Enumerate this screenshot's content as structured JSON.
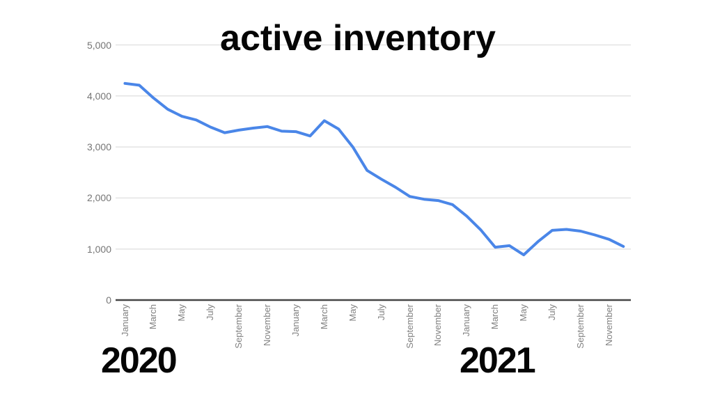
{
  "colors": {
    "background": "#ffffff",
    "line": "#4a86e8",
    "gridline": "#e3e3e3",
    "axis_line": "#454545",
    "y_tick_label": "#757575",
    "x_tick_label": "#818181",
    "title_text": "#050505",
    "year_text": "#050505"
  },
  "chart_data": {
    "type": "line",
    "title": "active inventory",
    "legend_position": "none",
    "grid": true,
    "ylim": [
      0,
      5000
    ],
    "y_tick_values": [
      0,
      1000,
      2000,
      3000,
      4000,
      5000
    ],
    "y_tick_labels": [
      "0",
      "1,000",
      "2,000",
      "3,000",
      "4,000",
      "5,000"
    ],
    "x_tick_month_indices": [
      0,
      2,
      4,
      6,
      8,
      10,
      12,
      14,
      16,
      18,
      20,
      22,
      24,
      26,
      28,
      30,
      32,
      34
    ],
    "x_tick_labels": [
      "January",
      "March",
      "May",
      "July",
      "September",
      "November",
      "January",
      "March",
      "May",
      "July",
      "September",
      "November",
      "January",
      "March",
      "May",
      "July",
      "September",
      "November"
    ],
    "annotations": [
      {
        "text": "2020"
      },
      {
        "text": "2021"
      }
    ],
    "series": [
      {
        "name": "active inventory",
        "values": [
          4245,
          4210,
          3960,
          3740,
          3600,
          3530,
          3390,
          3280,
          3330,
          3370,
          3400,
          3310,
          3300,
          3215,
          3515,
          3350,
          3000,
          2540,
          2370,
          2210,
          2030,
          1975,
          1950,
          1870,
          1645,
          1370,
          1035,
          1065,
          885,
          1145,
          1365,
          1385,
          1350,
          1275,
          1190,
          1050
        ]
      }
    ]
  }
}
